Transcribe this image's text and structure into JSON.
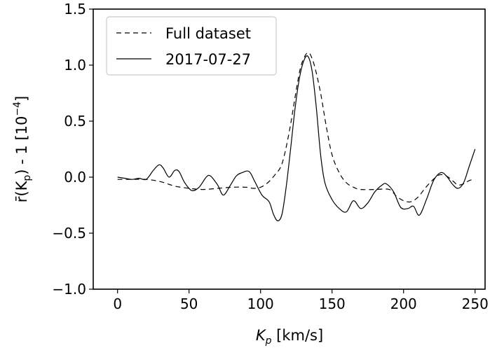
{
  "chart_data": {
    "type": "line",
    "x_label": {
      "var": "K",
      "sub": "p",
      "unit": " [km/s]"
    },
    "y_label": {
      "prefix": "r̄(K",
      "sub": "p",
      "mid": ") - 1 [10",
      "sup": "−4",
      "suffix": "]"
    },
    "x_range": [
      -17,
      257
    ],
    "y_range": [
      -1.0,
      1.5
    ],
    "x_ticks": [
      0,
      50,
      100,
      150,
      200,
      250
    ],
    "x_tick_labels": [
      "0",
      "50",
      "100",
      "150",
      "200",
      "250"
    ],
    "y_ticks": [
      -1.0,
      -0.5,
      0.0,
      0.5,
      1.0,
      1.5
    ],
    "y_tick_labels": [
      "−1.0",
      "−0.5",
      "0.0",
      "0.5",
      "1.0",
      "1.5"
    ],
    "legend_position": "upper-left",
    "series": [
      {
        "name": "Full dataset",
        "style": "dashed",
        "color": "#000000",
        "points": [
          [
            0,
            -0.02
          ],
          [
            10,
            -0.02
          ],
          [
            20,
            -0.02
          ],
          [
            30,
            -0.04
          ],
          [
            40,
            -0.08
          ],
          [
            50,
            -0.1
          ],
          [
            60,
            -0.11
          ],
          [
            70,
            -0.1
          ],
          [
            80,
            -0.09
          ],
          [
            90,
            -0.09
          ],
          [
            95,
            -0.1
          ],
          [
            100,
            -0.09
          ],
          [
            105,
            -0.05
          ],
          [
            110,
            0.02
          ],
          [
            115,
            0.12
          ],
          [
            120,
            0.4
          ],
          [
            125,
            0.78
          ],
          [
            128,
            0.98
          ],
          [
            131,
            1.08
          ],
          [
            133,
            1.11
          ],
          [
            135,
            1.09
          ],
          [
            138,
            0.98
          ],
          [
            142,
            0.75
          ],
          [
            146,
            0.45
          ],
          [
            150,
            0.2
          ],
          [
            155,
            0.04
          ],
          [
            160,
            -0.05
          ],
          [
            165,
            -0.09
          ],
          [
            170,
            -0.11
          ],
          [
            180,
            -0.11
          ],
          [
            190,
            -0.11
          ],
          [
            195,
            -0.17
          ],
          [
            200,
            -0.21
          ],
          [
            205,
            -0.22
          ],
          [
            210,
            -0.18
          ],
          [
            215,
            -0.1
          ],
          [
            220,
            -0.03
          ],
          [
            225,
            0.02
          ],
          [
            230,
            0.01
          ],
          [
            235,
            -0.04
          ],
          [
            238,
            -0.07
          ],
          [
            242,
            -0.06
          ],
          [
            246,
            -0.03
          ],
          [
            250,
            -0.02
          ]
        ]
      },
      {
        "name": "2017-07-27",
        "style": "solid",
        "color": "#000000",
        "points": [
          [
            0,
            0.0
          ],
          [
            5,
            -0.01
          ],
          [
            10,
            -0.02
          ],
          [
            15,
            -0.01
          ],
          [
            20,
            -0.02
          ],
          [
            25,
            0.06
          ],
          [
            29,
            0.11
          ],
          [
            32,
            0.08
          ],
          [
            36,
            0.0
          ],
          [
            40,
            0.06
          ],
          [
            43,
            0.05
          ],
          [
            47,
            -0.05
          ],
          [
            52,
            -0.12
          ],
          [
            57,
            -0.09
          ],
          [
            62,
            0.0
          ],
          [
            65,
            0.01
          ],
          [
            70,
            -0.07
          ],
          [
            74,
            -0.16
          ],
          [
            79,
            -0.07
          ],
          [
            83,
            0.01
          ],
          [
            87,
            0.04
          ],
          [
            92,
            0.05
          ],
          [
            96,
            -0.04
          ],
          [
            101,
            -0.16
          ],
          [
            106,
            -0.22
          ],
          [
            109,
            -0.33
          ],
          [
            112,
            -0.39
          ],
          [
            115,
            -0.33
          ],
          [
            118,
            -0.08
          ],
          [
            121,
            0.25
          ],
          [
            124,
            0.6
          ],
          [
            127,
            0.87
          ],
          [
            130,
            1.03
          ],
          [
            133,
            1.08
          ],
          [
            136,
            0.95
          ],
          [
            139,
            0.62
          ],
          [
            142,
            0.2
          ],
          [
            145,
            -0.05
          ],
          [
            150,
            -0.2
          ],
          [
            155,
            -0.28
          ],
          [
            160,
            -0.31
          ],
          [
            165,
            -0.21
          ],
          [
            170,
            -0.28
          ],
          [
            175,
            -0.23
          ],
          [
            180,
            -0.13
          ],
          [
            185,
            -0.07
          ],
          [
            188,
            -0.06
          ],
          [
            193,
            -0.13
          ],
          [
            198,
            -0.27
          ],
          [
            203,
            -0.28
          ],
          [
            207,
            -0.26
          ],
          [
            211,
            -0.34
          ],
          [
            216,
            -0.2
          ],
          [
            221,
            -0.03
          ],
          [
            226,
            0.04
          ],
          [
            230,
            0.01
          ],
          [
            234,
            -0.06
          ],
          [
            238,
            -0.1
          ],
          [
            242,
            -0.05
          ],
          [
            246,
            0.1
          ],
          [
            250,
            0.25
          ]
        ]
      }
    ]
  }
}
